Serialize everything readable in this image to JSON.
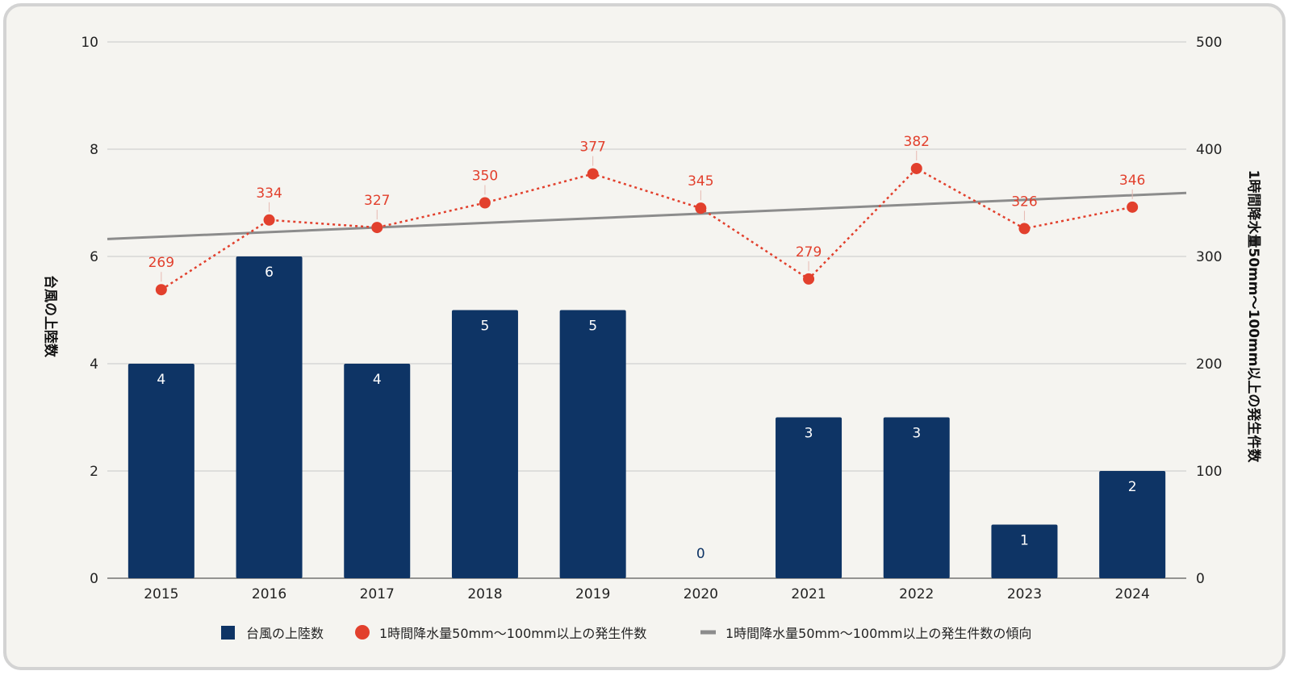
{
  "chart_data": {
    "type": "bar",
    "categories": [
      "2015",
      "2016",
      "2017",
      "2018",
      "2019",
      "2020",
      "2021",
      "2022",
      "2023",
      "2024"
    ],
    "series": [
      {
        "name": "台風の上陸数",
        "kind": "bar",
        "axis": "left",
        "color": "#0e3465",
        "values": [
          4,
          6,
          4,
          5,
          5,
          0,
          3,
          3,
          1,
          2
        ]
      },
      {
        "name": "1時間降水量50mm～100mm以上の発生件数",
        "kind": "line-dotted",
        "axis": "right",
        "color": "#e2402d",
        "values": [
          269,
          334,
          327,
          350,
          377,
          345,
          279,
          382,
          326,
          346
        ]
      },
      {
        "name": "1時間降水量50mm～100mm以上の発生件数の傾向",
        "kind": "trendline",
        "axis": "right",
        "color": "#8c8c8c",
        "values": [
          318.4,
          322.7,
          327.0,
          331.3,
          335.6,
          339.9,
          344.2,
          348.5,
          352.8,
          357.1
        ]
      }
    ],
    "ylabel_left": "台風の上陸数",
    "ylabel_right": "1時間降水量50mm～100mm以上の発生件数",
    "ylim_left": [
      0,
      10
    ],
    "ylim_right": [
      0,
      500
    ],
    "yticks_left": [
      "0",
      "2",
      "4",
      "6",
      "8",
      "10"
    ],
    "yticks_right": [
      "0",
      "100",
      "200",
      "300",
      "400",
      "500"
    ],
    "grid": true,
    "legend_position": "bottom"
  }
}
